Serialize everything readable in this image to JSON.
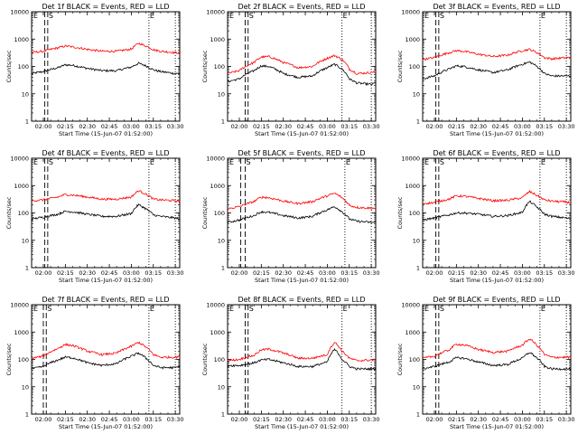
{
  "figure": {
    "panels": [
      {
        "title": "Det 1f BLACK = Events, RED = LLD",
        "markers": [
          "E",
          "S",
          "E"
        ]
      },
      {
        "title": "Det 2f BLACK = Events, RED = LLD",
        "markers": [
          "E",
          "S",
          "E"
        ]
      },
      {
        "title": "Det 3f BLACK = Events, RED = LLD",
        "markers": [
          "E",
          "S",
          "E"
        ]
      },
      {
        "title": "Det 4f BLACK = Events, RED = LLD",
        "markers": [
          "E",
          "S",
          "E"
        ]
      },
      {
        "title": "Det 5f BLACK = Events, RED = LLD",
        "markers": [
          "E",
          "S",
          "E"
        ]
      },
      {
        "title": "Det 6f BLACK = Events, RED = LLD",
        "markers": [
          "E",
          "S",
          "E"
        ]
      },
      {
        "title": "Det 7f BLACK = Events, RED = LLD",
        "markers": [
          "E",
          "S",
          "E"
        ]
      },
      {
        "title": "Det 8f BLACK = Events, RED = LLD",
        "markers": [
          "E",
          "S",
          "E"
        ]
      },
      {
        "title": "Det 9f BLACK = Events, RED = LLD",
        "markers": [
          "E",
          "S",
          "E"
        ]
      }
    ],
    "xlabel": "Start Time (15-Jun-07 01:52:00)",
    "ylabel": "Counts/sec",
    "x_tick_labels": [
      "02:00",
      "02:15",
      "02:30",
      "02:45",
      "03:00",
      "03:15",
      "03:30"
    ],
    "y_tick_labels": [
      "1",
      "10",
      "100",
      "1000",
      "10000"
    ],
    "colors": {
      "events": "#000000",
      "lld": "#ff0000",
      "axes": "#000000"
    }
  },
  "chart_data": [
    {
      "type": "line",
      "title": "Det 1f BLACK = Events, RED = LLD",
      "xlabel": "Start Time (15-Jun-07 01:52:00)",
      "ylabel": "Counts/sec",
      "y_scale": "log",
      "ylim": [
        1,
        10000
      ],
      "xlim": [
        "01:52",
        "03:33"
      ],
      "x": [
        "01:52",
        "02:00",
        "02:10",
        "02:15",
        "02:20",
        "02:30",
        "02:40",
        "02:50",
        "03:00",
        "03:05",
        "03:10",
        "03:15",
        "03:20",
        "03:30",
        "03:33"
      ],
      "series": [
        {
          "name": "Events",
          "color": "#000000",
          "values": [
            55,
            65,
            90,
            115,
            110,
            85,
            70,
            70,
            95,
            130,
            105,
            75,
            65,
            55,
            55
          ]
        },
        {
          "name": "LLD",
          "color": "#ff0000",
          "values": [
            320,
            360,
            480,
            560,
            520,
            420,
            360,
            360,
            430,
            700,
            560,
            410,
            360,
            320,
            320
          ]
        }
      ],
      "vlines": {
        "dashed": [
          "02:01",
          "02:03"
        ],
        "dotted": [
          "03:12",
          "03:30"
        ]
      }
    },
    {
      "type": "line",
      "title": "Det 2f BLACK = Events, RED = LLD",
      "xlabel": "Start Time (15-Jun-07 01:52:00)",
      "ylabel": "Counts/sec",
      "y_scale": "log",
      "ylim": [
        1,
        10000
      ],
      "xlim": [
        "01:52",
        "03:33"
      ],
      "x": [
        "01:52",
        "02:00",
        "02:10",
        "02:15",
        "02:20",
        "02:30",
        "02:40",
        "02:50",
        "03:00",
        "03:05",
        "03:10",
        "03:15",
        "03:20",
        "03:30",
        "03:33"
      ],
      "series": [
        {
          "name": "Events",
          "color": "#000000",
          "values": [
            28,
            35,
            70,
            105,
            100,
            55,
            40,
            45,
            90,
            120,
            80,
            35,
            25,
            22,
            25
          ]
        },
        {
          "name": "LLD",
          "color": "#ff0000",
          "values": [
            55,
            70,
            140,
            220,
            230,
            140,
            90,
            100,
            200,
            250,
            180,
            80,
            55,
            60,
            70
          ]
        }
      ],
      "vlines": {
        "dashed": [
          "02:04",
          "02:06"
        ],
        "dotted": [
          "03:10",
          "03:30"
        ]
      }
    },
    {
      "type": "line",
      "title": "Det 3f BLACK = Events, RED = LLD",
      "xlabel": "Start Time (15-Jun-07 01:52:00)",
      "ylabel": "Counts/sec",
      "y_scale": "log",
      "ylim": [
        1,
        10000
      ],
      "xlim": [
        "01:52",
        "03:33"
      ],
      "x": [
        "01:52",
        "02:00",
        "02:10",
        "02:15",
        "02:20",
        "02:30",
        "02:40",
        "02:50",
        "03:00",
        "03:05",
        "03:10",
        "03:15",
        "03:20",
        "03:30",
        "03:33"
      ],
      "series": [
        {
          "name": "Events",
          "color": "#000000",
          "values": [
            35,
            45,
            80,
            105,
            100,
            75,
            60,
            75,
            120,
            145,
            100,
            55,
            45,
            45,
            45
          ]
        },
        {
          "name": "LLD",
          "color": "#ff0000",
          "values": [
            180,
            210,
            320,
            380,
            360,
            280,
            230,
            260,
            380,
            420,
            320,
            210,
            190,
            210,
            210
          ]
        }
      ],
      "vlines": {
        "dashed": [
          "02:01",
          "02:03"
        ],
        "dotted": [
          "03:12",
          "03:30"
        ]
      }
    },
    {
      "type": "line",
      "title": "Det 4f BLACK = Events, RED = LLD",
      "xlabel": "Start Time (15-Jun-07 01:52:00)",
      "ylabel": "Counts/sec",
      "y_scale": "log",
      "ylim": [
        1,
        10000
      ],
      "xlim": [
        "01:52",
        "03:33"
      ],
      "x": [
        "01:52",
        "02:00",
        "02:10",
        "02:15",
        "02:20",
        "02:30",
        "02:40",
        "02:50",
        "03:00",
        "03:05",
        "03:10",
        "03:15",
        "03:20",
        "03:30",
        "03:33"
      ],
      "series": [
        {
          "name": "Events",
          "color": "#000000",
          "values": [
            60,
            70,
            90,
            115,
            110,
            90,
            75,
            75,
            95,
            200,
            140,
            85,
            75,
            65,
            60
          ]
        },
        {
          "name": "LLD",
          "color": "#ff0000",
          "values": [
            280,
            300,
            380,
            470,
            450,
            380,
            320,
            320,
            380,
            650,
            480,
            320,
            300,
            280,
            270
          ]
        }
      ],
      "vlines": {
        "dashed": [
          "02:01",
          "02:03"
        ],
        "dotted": [
          "03:12",
          "03:30"
        ]
      }
    },
    {
      "type": "line",
      "title": "Det 5f BLACK = Events, RED = LLD",
      "xlabel": "Start Time (15-Jun-07 01:52:00)",
      "ylabel": "Counts/sec",
      "y_scale": "log",
      "ylim": [
        1,
        10000
      ],
      "xlim": [
        "01:52",
        "03:33"
      ],
      "x": [
        "01:52",
        "02:00",
        "02:10",
        "02:15",
        "02:20",
        "02:30",
        "02:40",
        "02:50",
        "03:00",
        "03:05",
        "03:10",
        "03:15",
        "03:20",
        "03:30",
        "03:33"
      ],
      "series": [
        {
          "name": "Events",
          "color": "#000000",
          "values": [
            45,
            55,
            80,
            110,
            105,
            80,
            65,
            75,
            130,
            170,
            110,
            60,
            50,
            45,
            45
          ]
        },
        {
          "name": "LLD",
          "color": "#ff0000",
          "values": [
            140,
            170,
            260,
            380,
            360,
            270,
            220,
            260,
            420,
            520,
            360,
            190,
            160,
            150,
            150
          ]
        }
      ],
      "vlines": {
        "dashed": [
          "02:01",
          "02:04"
        ],
        "dotted": [
          "03:12",
          "03:30"
        ]
      }
    },
    {
      "type": "line",
      "title": "Det 6f BLACK = Events, RED = LLD",
      "xlabel": "Start Time (15-Jun-07 01:52:00)",
      "ylabel": "Counts/sec",
      "y_scale": "log",
      "ylim": [
        1,
        10000
      ],
      "xlim": [
        "01:52",
        "03:33"
      ],
      "x": [
        "01:52",
        "02:00",
        "02:10",
        "02:15",
        "02:20",
        "02:30",
        "02:40",
        "02:50",
        "03:00",
        "03:05",
        "03:10",
        "03:15",
        "03:20",
        "03:30",
        "03:33"
      ],
      "series": [
        {
          "name": "Events",
          "color": "#000000",
          "values": [
            55,
            65,
            85,
            100,
            100,
            90,
            75,
            80,
            105,
            260,
            160,
            90,
            75,
            65,
            60
          ]
        },
        {
          "name": "LLD",
          "color": "#ff0000",
          "values": [
            220,
            240,
            320,
            420,
            410,
            340,
            280,
            290,
            360,
            600,
            430,
            300,
            270,
            250,
            240
          ]
        }
      ],
      "vlines": {
        "dashed": [
          "02:01",
          "02:03"
        ],
        "dotted": [
          "03:12",
          "03:30"
        ]
      }
    },
    {
      "type": "line",
      "title": "Det 7f BLACK = Events, RED = LLD",
      "xlabel": "Start Time (15-Jun-07 01:52:00)",
      "ylabel": "Counts/sec",
      "y_scale": "log",
      "ylim": [
        1,
        10000
      ],
      "xlim": [
        "01:52",
        "03:33"
      ],
      "x": [
        "01:52",
        "02:00",
        "02:10",
        "02:15",
        "02:20",
        "02:30",
        "02:40",
        "02:50",
        "03:00",
        "03:05",
        "03:10",
        "03:15",
        "03:20",
        "03:30",
        "03:33"
      ],
      "series": [
        {
          "name": "Events",
          "color": "#000000",
          "values": [
            45,
            55,
            95,
            120,
            115,
            75,
            60,
            70,
            130,
            170,
            110,
            60,
            50,
            50,
            55
          ]
        },
        {
          "name": "LLD",
          "color": "#ff0000",
          "values": [
            110,
            130,
            250,
            350,
            320,
            200,
            150,
            170,
            300,
            420,
            280,
            150,
            120,
            120,
            130
          ]
        }
      ],
      "vlines": {
        "dashed": [
          "02:00",
          "02:02"
        ],
        "dotted": [
          "03:12",
          "03:30"
        ]
      }
    },
    {
      "type": "line",
      "title": "Det 8f BLACK = Events, RED = LLD",
      "xlabel": "Start Time (15-Jun-07 01:52:00)",
      "ylabel": "Counts/sec",
      "y_scale": "log",
      "ylim": [
        1,
        10000
      ],
      "xlim": [
        "01:52",
        "03:33"
      ],
      "x": [
        "01:52",
        "02:00",
        "02:10",
        "02:15",
        "02:20",
        "02:30",
        "02:40",
        "02:50",
        "03:00",
        "03:05",
        "03:10",
        "03:15",
        "03:20",
        "03:30",
        "03:33"
      ],
      "series": [
        {
          "name": "Events",
          "color": "#000000",
          "values": [
            60,
            60,
            75,
            95,
            100,
            75,
            55,
            55,
            80,
            230,
            100,
            55,
            45,
            45,
            45
          ]
        },
        {
          "name": "LLD",
          "color": "#ff0000",
          "values": [
            90,
            100,
            140,
            220,
            240,
            170,
            110,
            110,
            150,
            420,
            200,
            110,
            90,
            95,
            95
          ]
        }
      ],
      "vlines": {
        "dashed": [
          "02:04",
          "02:06"
        ],
        "dotted": [
          "03:10",
          "03:30"
        ]
      }
    },
    {
      "type": "line",
      "title": "Det 9f BLACK = Events, RED = LLD",
      "xlabel": "Start Time (15-Jun-07 01:52:00)",
      "ylabel": "Counts/sec",
      "y_scale": "log",
      "ylim": [
        1,
        10000
      ],
      "xlim": [
        "01:52",
        "03:33"
      ],
      "x": [
        "01:52",
        "02:00",
        "02:10",
        "02:15",
        "02:20",
        "02:30",
        "02:40",
        "02:50",
        "03:00",
        "03:05",
        "03:10",
        "03:15",
        "03:20",
        "03:30",
        "03:33"
      ],
      "series": [
        {
          "name": "Events",
          "color": "#000000",
          "values": [
            45,
            55,
            80,
            115,
            110,
            80,
            60,
            65,
            110,
            180,
            110,
            55,
            45,
            45,
            45
          ]
        },
        {
          "name": "LLD",
          "color": "#ff0000",
          "values": [
            110,
            130,
            220,
            360,
            340,
            230,
            180,
            200,
            330,
            560,
            320,
            150,
            120,
            120,
            120
          ]
        }
      ],
      "vlines": {
        "dashed": [
          "02:01",
          "02:03"
        ],
        "dotted": [
          "03:12",
          "03:30"
        ]
      }
    }
  ]
}
